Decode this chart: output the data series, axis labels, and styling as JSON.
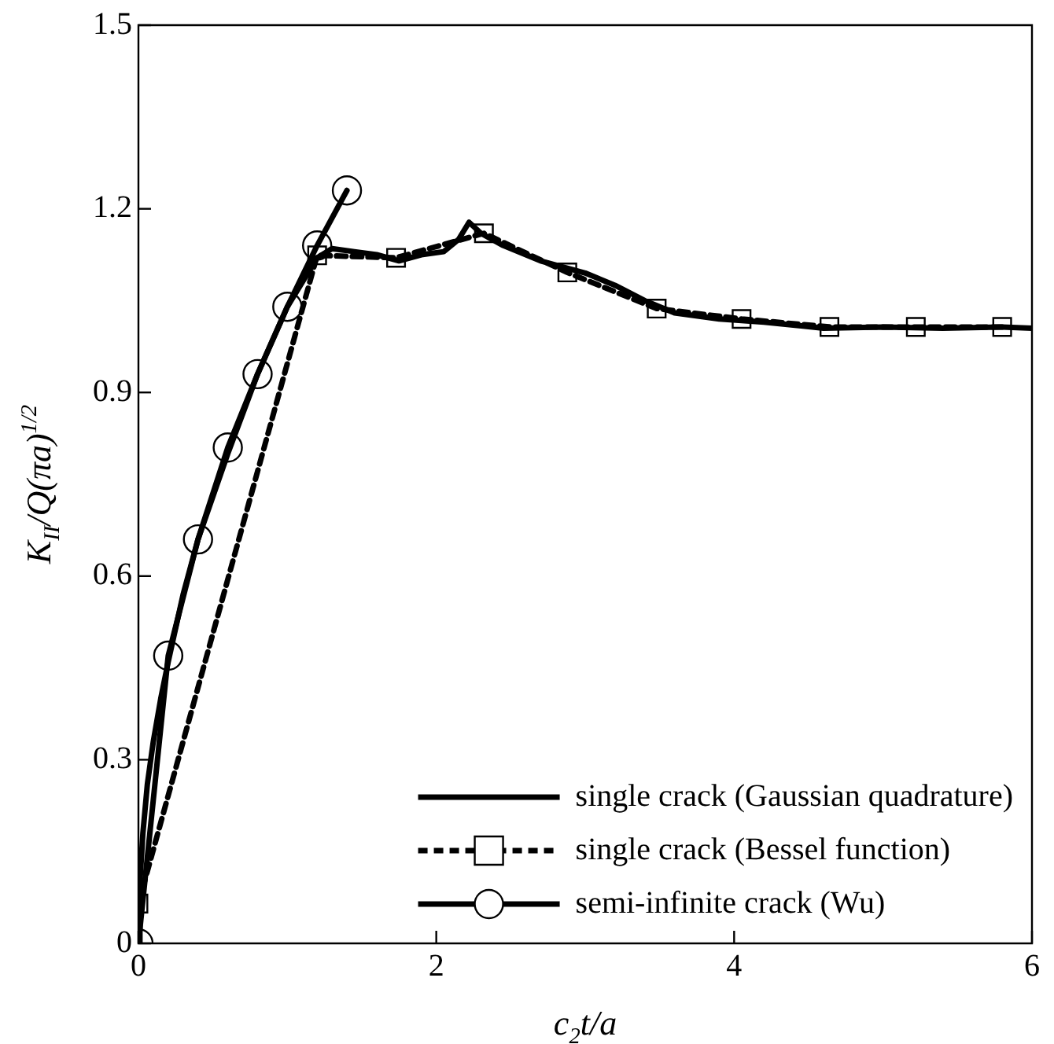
{
  "chart_data": {
    "type": "line",
    "xlabel": "c$_{2}$t/a",
    "ylabel": "K$_{II}$/Q(πa)$^{1/2}$",
    "xlim": [
      0,
      6
    ],
    "xticks": [
      0,
      2,
      4,
      6
    ],
    "ylim": [
      0,
      1.5
    ],
    "yticks": [
      0,
      0.3,
      0.6,
      0.9,
      1.2,
      1.5
    ],
    "grid": false,
    "legend": "bottom right",
    "series": [
      {
        "name": "single crack (Gaussian quadrature)",
        "color": "#000000",
        "marker": "none",
        "line_style": "solid",
        "x": [
          0,
          0.01,
          0.03,
          0.06,
          0.1,
          0.15,
          0.2,
          0.3,
          0.4,
          0.6,
          0.8,
          1.0,
          1.2,
          1.3,
          1.45,
          1.6,
          1.75,
          1.9,
          2.05,
          2.15,
          2.22,
          2.3,
          2.45,
          2.7,
          3.0,
          3.2,
          3.4,
          3.6,
          3.9,
          4.2,
          4.6,
          5.0,
          5.4,
          5.8,
          6.0
        ],
        "values": [
          0,
          0.1,
          0.18,
          0.26,
          0.33,
          0.4,
          0.46,
          0.57,
          0.66,
          0.8,
          0.93,
          1.04,
          1.12,
          1.135,
          1.13,
          1.125,
          1.115,
          1.125,
          1.13,
          1.15,
          1.178,
          1.16,
          1.14,
          1.115,
          1.095,
          1.075,
          1.05,
          1.03,
          1.02,
          1.015,
          1.005,
          1.007,
          1.005,
          1.007,
          1.005
        ]
      },
      {
        "name": "single crack (Bessel function)",
        "color": "#000000",
        "marker": "square",
        "line_style": "dashed",
        "x": [
          0,
          1.2,
          1.73,
          2.32,
          2.88,
          3.48,
          4.05,
          4.64,
          5.22,
          5.8
        ],
        "values": [
          0.065,
          1.124,
          1.12,
          1.16,
          1.096,
          1.037,
          1.02,
          1.007,
          1.007,
          1.007
        ]
      },
      {
        "name": "semi-infinite crack (Wu)",
        "color": "#000000",
        "marker": "circle",
        "line_style": "solid",
        "x": [
          0,
          0.2,
          0.4,
          0.6,
          0.8,
          1.0,
          1.2,
          1.4
        ],
        "values": [
          0,
          0.47,
          0.66,
          0.81,
          0.93,
          1.04,
          1.14,
          1.23
        ]
      }
    ]
  }
}
